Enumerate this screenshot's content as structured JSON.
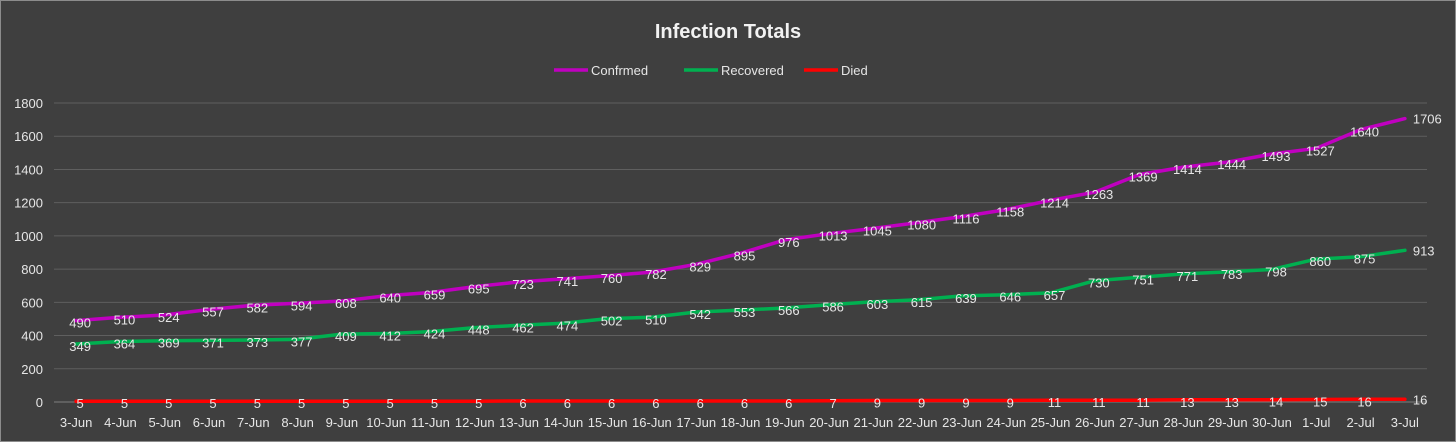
{
  "chart_data": {
    "type": "line",
    "title": "Infection Totals",
    "xlabel": "",
    "ylabel": "",
    "ylim": [
      0,
      1800
    ],
    "yticks": [
      0,
      200,
      400,
      600,
      800,
      1000,
      1200,
      1400,
      1600,
      1800
    ],
    "grid": true,
    "legend_position": "top-center",
    "categories": [
      "3-Jun",
      "4-Jun",
      "5-Jun",
      "6-Jun",
      "7-Jun",
      "8-Jun",
      "9-Jun",
      "10-Jun",
      "11-Jun",
      "12-Jun",
      "13-Jun",
      "14-Jun",
      "15-Jun",
      "16-Jun",
      "17-Jun",
      "18-Jun",
      "19-Jun",
      "20-Jun",
      "21-Jun",
      "22-Jun",
      "23-Jun",
      "24-Jun",
      "25-Jun",
      "26-Jun",
      "27-Jun",
      "28-Jun",
      "29-Jun",
      "30-Jun",
      "1-Jul",
      "2-Jul",
      "3-Jul"
    ],
    "series": [
      {
        "name": "Confrmed",
        "color": "#c000c0",
        "values": [
          490,
          510,
          524,
          557,
          582,
          594,
          608,
          640,
          659,
          695,
          723,
          741,
          760,
          782,
          829,
          895,
          976,
          1013,
          1045,
          1080,
          1116,
          1158,
          1214,
          1263,
          1369,
          1414,
          1444,
          1493,
          1527,
          1640,
          1706
        ]
      },
      {
        "name": "Recovered",
        "color": "#00b050",
        "values": [
          349,
          364,
          369,
          371,
          373,
          377,
          409,
          412,
          424,
          448,
          462,
          474,
          502,
          510,
          542,
          553,
          566,
          586,
          603,
          615,
          639,
          646,
          657,
          730,
          751,
          771,
          783,
          798,
          860,
          875,
          913
        ]
      },
      {
        "name": "Died",
        "color": "#ff0000",
        "values": [
          5,
          5,
          5,
          5,
          5,
          5,
          5,
          5,
          5,
          5,
          6,
          6,
          6,
          6,
          6,
          6,
          6,
          7,
          9,
          9,
          9,
          9,
          11,
          11,
          11,
          13,
          13,
          14,
          15,
          16,
          16
        ]
      }
    ]
  },
  "colors": {
    "background": "#3f3f3f",
    "gridline": "#5f5f5f",
    "text": "#e6e6e6"
  }
}
